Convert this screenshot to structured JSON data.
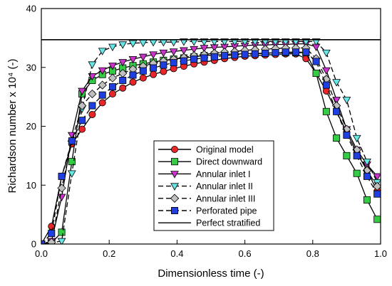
{
  "chart_data": {
    "type": "line",
    "xlabel": "Dimensionless time (-)",
    "ylabel": "Richardson number x 10⁴ (-)",
    "xlim": [
      0,
      1
    ],
    "ylim": [
      0,
      40
    ],
    "xticks": [
      "0.0",
      "0.2",
      "0.4",
      "0.6",
      "0.8",
      "1.0"
    ],
    "yticks": [
      "0",
      "10",
      "20",
      "30",
      "40"
    ],
    "grid": false,
    "legend_position": "lower-right",
    "series": [
      {
        "name": "Original model",
        "color": "#e8262a",
        "marker": "circle",
        "dash": "solid",
        "points": [
          [
            0.0,
            0
          ],
          [
            0.03,
            3.0
          ],
          [
            0.06,
            11.5
          ],
          [
            0.09,
            17.0
          ],
          [
            0.12,
            19.5
          ],
          [
            0.15,
            22.0
          ],
          [
            0.18,
            24.0
          ],
          [
            0.21,
            25.5
          ],
          [
            0.24,
            26.5
          ],
          [
            0.27,
            27.5
          ],
          [
            0.3,
            28.2
          ],
          [
            0.33,
            28.8
          ],
          [
            0.36,
            29.3
          ],
          [
            0.39,
            29.8
          ],
          [
            0.42,
            30.2
          ],
          [
            0.45,
            30.6
          ],
          [
            0.48,
            30.9
          ],
          [
            0.51,
            31.2
          ],
          [
            0.54,
            31.5
          ],
          [
            0.57,
            31.7
          ],
          [
            0.6,
            31.9
          ],
          [
            0.63,
            32.0
          ],
          [
            0.66,
            32.1
          ],
          [
            0.69,
            32.2
          ],
          [
            0.72,
            32.3
          ],
          [
            0.75,
            32.3
          ],
          [
            0.78,
            31.5
          ],
          [
            0.81,
            29.0
          ],
          [
            0.84,
            26.0
          ],
          [
            0.87,
            22.5
          ],
          [
            0.9,
            19.0
          ],
          [
            0.93,
            15.5
          ],
          [
            0.96,
            12.5
          ],
          [
            0.99,
            9.0
          ]
        ]
      },
      {
        "name": "Direct downward",
        "color": "#33cc44",
        "marker": "square",
        "dash": "solid",
        "points": [
          [
            0.0,
            0
          ],
          [
            0.03,
            0.2
          ],
          [
            0.06,
            2.0
          ],
          [
            0.09,
            14.0
          ],
          [
            0.12,
            25.5
          ],
          [
            0.15,
            27.8
          ],
          [
            0.18,
            28.8
          ],
          [
            0.21,
            29.4
          ],
          [
            0.24,
            29.9
          ],
          [
            0.27,
            30.3
          ],
          [
            0.3,
            30.6
          ],
          [
            0.33,
            30.9
          ],
          [
            0.36,
            31.2
          ],
          [
            0.39,
            31.4
          ],
          [
            0.42,
            31.6
          ],
          [
            0.45,
            31.8
          ],
          [
            0.48,
            32.0
          ],
          [
            0.51,
            32.1
          ],
          [
            0.54,
            32.2
          ],
          [
            0.57,
            32.3
          ],
          [
            0.6,
            32.3
          ],
          [
            0.63,
            32.4
          ],
          [
            0.66,
            32.4
          ],
          [
            0.69,
            32.5
          ],
          [
            0.72,
            32.5
          ],
          [
            0.75,
            32.5
          ],
          [
            0.78,
            32.5
          ],
          [
            0.81,
            29.0
          ],
          [
            0.84,
            22.5
          ],
          [
            0.87,
            18.0
          ],
          [
            0.9,
            15.0
          ],
          [
            0.93,
            12.0
          ],
          [
            0.96,
            7.5
          ],
          [
            0.99,
            4.2
          ]
        ]
      },
      {
        "name": "Annular inlet I",
        "color": "#cc33cc",
        "marker": "triangle-down",
        "dash": "solid",
        "points": [
          [
            0.0,
            0
          ],
          [
            0.03,
            0.5
          ],
          [
            0.06,
            8.0
          ],
          [
            0.09,
            18.5
          ],
          [
            0.12,
            26.0
          ],
          [
            0.15,
            28.5
          ],
          [
            0.18,
            29.5
          ],
          [
            0.21,
            30.3
          ],
          [
            0.24,
            30.9
          ],
          [
            0.27,
            31.4
          ],
          [
            0.3,
            31.8
          ],
          [
            0.33,
            32.2
          ],
          [
            0.36,
            32.5
          ],
          [
            0.39,
            32.7
          ],
          [
            0.42,
            32.9
          ],
          [
            0.45,
            33.1
          ],
          [
            0.48,
            33.3
          ],
          [
            0.51,
            33.4
          ],
          [
            0.54,
            33.5
          ],
          [
            0.57,
            33.6
          ],
          [
            0.6,
            33.7
          ],
          [
            0.63,
            33.8
          ],
          [
            0.66,
            33.8
          ],
          [
            0.69,
            33.9
          ],
          [
            0.72,
            33.9
          ],
          [
            0.75,
            34.0
          ],
          [
            0.78,
            34.0
          ],
          [
            0.81,
            33.5
          ],
          [
            0.84,
            29.5
          ],
          [
            0.87,
            24.5
          ],
          [
            0.9,
            19.5
          ],
          [
            0.93,
            16.0
          ],
          [
            0.96,
            13.5
          ],
          [
            0.99,
            11.5
          ]
        ]
      },
      {
        "name": "Annular inlet II",
        "color": "#66e6e6",
        "marker": "triangle-down",
        "dash": "dashed",
        "points": [
          [
            0.0,
            0
          ],
          [
            0.03,
            0.2
          ],
          [
            0.06,
            0.5
          ],
          [
            0.09,
            12.0
          ],
          [
            0.12,
            23.0
          ],
          [
            0.15,
            30.5
          ],
          [
            0.18,
            32.8
          ],
          [
            0.21,
            33.5
          ],
          [
            0.24,
            33.9
          ],
          [
            0.27,
            34.1
          ],
          [
            0.3,
            34.2
          ],
          [
            0.33,
            34.3
          ],
          [
            0.36,
            34.3
          ],
          [
            0.39,
            34.3
          ],
          [
            0.42,
            34.4
          ],
          [
            0.45,
            34.4
          ],
          [
            0.48,
            34.4
          ],
          [
            0.51,
            34.4
          ],
          [
            0.54,
            34.4
          ],
          [
            0.57,
            34.4
          ],
          [
            0.6,
            34.4
          ],
          [
            0.63,
            34.4
          ],
          [
            0.66,
            34.4
          ],
          [
            0.69,
            34.4
          ],
          [
            0.72,
            34.4
          ],
          [
            0.75,
            34.4
          ],
          [
            0.78,
            34.4
          ],
          [
            0.81,
            34.4
          ],
          [
            0.84,
            32.5
          ],
          [
            0.87,
            27.5
          ],
          [
            0.9,
            24.5
          ],
          [
            0.93,
            18.0
          ],
          [
            0.96,
            14.0
          ],
          [
            0.99,
            10.5
          ]
        ]
      },
      {
        "name": "Annular inlet III",
        "color": "#c0c0c0",
        "marker": "diamond",
        "dash": "dashed",
        "points": [
          [
            0.0,
            0
          ],
          [
            0.03,
            0.3
          ],
          [
            0.06,
            9.5
          ],
          [
            0.09,
            17.5
          ],
          [
            0.12,
            23.5
          ],
          [
            0.15,
            25.5
          ],
          [
            0.18,
            27.0
          ],
          [
            0.21,
            28.2
          ],
          [
            0.24,
            29.0
          ],
          [
            0.27,
            29.7
          ],
          [
            0.3,
            30.2
          ],
          [
            0.33,
            30.7
          ],
          [
            0.36,
            31.1
          ],
          [
            0.39,
            31.4
          ],
          [
            0.42,
            31.7
          ],
          [
            0.45,
            32.0
          ],
          [
            0.48,
            32.2
          ],
          [
            0.51,
            32.4
          ],
          [
            0.54,
            32.6
          ],
          [
            0.57,
            32.7
          ],
          [
            0.6,
            32.9
          ],
          [
            0.63,
            33.0
          ],
          [
            0.66,
            33.1
          ],
          [
            0.69,
            33.2
          ],
          [
            0.72,
            33.3
          ],
          [
            0.75,
            33.3
          ],
          [
            0.78,
            33.3
          ],
          [
            0.81,
            31.5
          ],
          [
            0.84,
            28.0
          ],
          [
            0.87,
            23.5
          ],
          [
            0.9,
            19.5
          ],
          [
            0.93,
            16.0
          ],
          [
            0.96,
            12.5
          ],
          [
            0.99,
            9.8
          ]
        ]
      },
      {
        "name": "Perforated pipe",
        "color": "#1f3fe0",
        "marker": "square",
        "dash": "dashed",
        "points": [
          [
            0.0,
            0
          ],
          [
            0.03,
            1.8
          ],
          [
            0.06,
            11.5
          ],
          [
            0.09,
            17.5
          ],
          [
            0.12,
            21.0
          ],
          [
            0.15,
            23.5
          ],
          [
            0.18,
            25.3
          ],
          [
            0.21,
            26.7
          ],
          [
            0.24,
            27.8
          ],
          [
            0.27,
            28.7
          ],
          [
            0.3,
            29.4
          ],
          [
            0.33,
            29.9
          ],
          [
            0.36,
            30.4
          ],
          [
            0.39,
            30.8
          ],
          [
            0.42,
            31.1
          ],
          [
            0.45,
            31.4
          ],
          [
            0.48,
            31.6
          ],
          [
            0.51,
            31.8
          ],
          [
            0.54,
            32.0
          ],
          [
            0.57,
            32.1
          ],
          [
            0.6,
            32.2
          ],
          [
            0.63,
            32.3
          ],
          [
            0.66,
            32.4
          ],
          [
            0.69,
            32.5
          ],
          [
            0.72,
            32.6
          ],
          [
            0.75,
            32.6
          ],
          [
            0.78,
            32.6
          ],
          [
            0.81,
            31.0
          ],
          [
            0.84,
            27.0
          ],
          [
            0.87,
            22.5
          ],
          [
            0.9,
            18.5
          ],
          [
            0.93,
            15.0
          ],
          [
            0.96,
            11.5
          ],
          [
            0.99,
            8.5
          ]
        ]
      },
      {
        "name": "Perfect stratified",
        "color": "#000000",
        "marker": "none",
        "dash": "solid",
        "points": [
          [
            0.0,
            34.7
          ],
          [
            1.0,
            34.7
          ]
        ]
      }
    ]
  }
}
